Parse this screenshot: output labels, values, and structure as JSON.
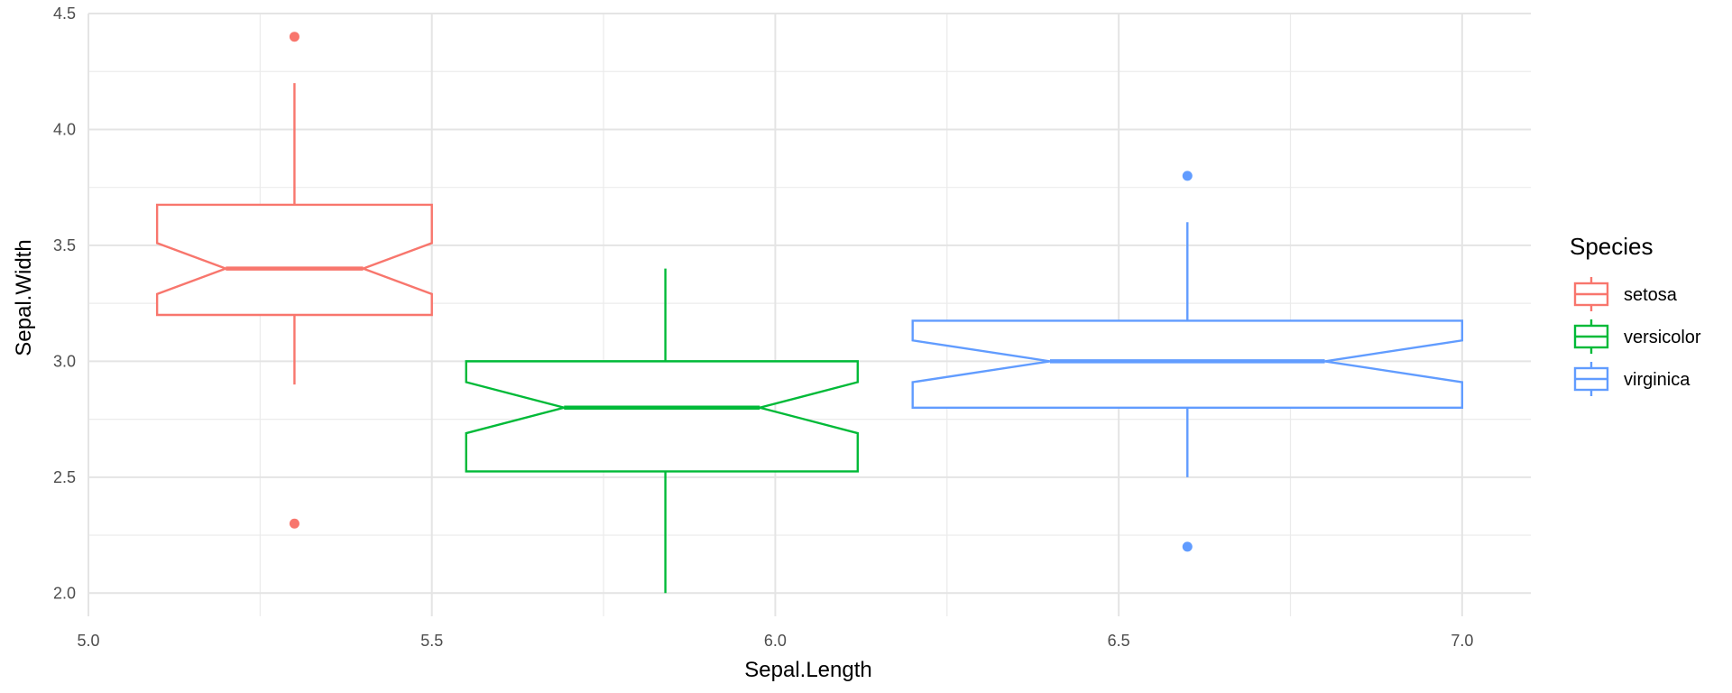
{
  "chart_data": {
    "type": "boxplot",
    "xlabel": "Sepal.Length",
    "ylabel": "Sepal.Width",
    "xlim": [
      5.0,
      7.1
    ],
    "ylim": [
      1.9,
      4.5
    ],
    "x_ticks": [
      5.0,
      5.5,
      6.0,
      6.5,
      7.0
    ],
    "x_tick_labels": [
      "5.0",
      "5.5",
      "6.0",
      "6.5",
      "7.0"
    ],
    "y_ticks": [
      2.0,
      2.5,
      3.0,
      3.5,
      4.0,
      4.5
    ],
    "y_tick_labels": [
      "2.0",
      "2.5",
      "3.0",
      "3.5",
      "4.0",
      "4.5"
    ],
    "notched": true,
    "grid": true,
    "legend": {
      "title": "Species",
      "placement": "right"
    },
    "series": [
      {
        "name": "setosa",
        "color": "#F8766D",
        "x_center": 5.3,
        "x_range": [
          5.1,
          5.5
        ],
        "q1": 3.2,
        "median": 3.4,
        "q3": 3.675,
        "notch_low": 3.29,
        "notch_high": 3.51,
        "whisker_low": 2.9,
        "whisker_high": 4.2,
        "outliers": [
          4.4,
          2.3
        ]
      },
      {
        "name": "versicolor",
        "color": "#00BA38",
        "x_center": 5.84,
        "x_range": [
          5.55,
          6.12
        ],
        "q1": 2.525,
        "median": 2.8,
        "q3": 3.0,
        "notch_low": 2.69,
        "notch_high": 2.91,
        "whisker_low": 2.0,
        "whisker_high": 3.4,
        "outliers": []
      },
      {
        "name": "virginica",
        "color": "#619CFF",
        "x_center": 6.6,
        "x_range": [
          6.2,
          7.0
        ],
        "q1": 2.8,
        "median": 3.0,
        "q3": 3.175,
        "notch_low": 2.91,
        "notch_high": 3.09,
        "whisker_low": 2.5,
        "whisker_high": 3.6,
        "outliers": [
          3.8,
          2.2
        ]
      }
    ]
  }
}
